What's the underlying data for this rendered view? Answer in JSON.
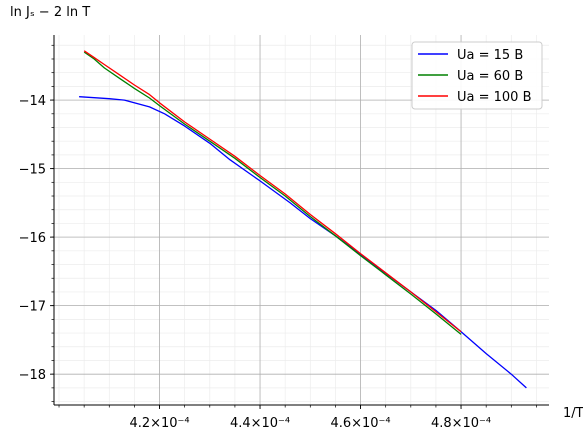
{
  "chart_data": {
    "type": "line",
    "xlabel": "1/T",
    "ylabel": "ln Jₛ − 2 ln T",
    "xlim": [
      0.000399,
      0.0004975
    ],
    "ylim": [
      -18.45,
      -13.05
    ],
    "x_major_ticks": [
      0.00042,
      0.00044,
      0.00046,
      0.00048
    ],
    "x_tick_labels": [
      "4.2×10⁻⁴",
      "4.4×10⁻⁴",
      "4.6×10⁻⁴",
      "4.8×10⁻⁴"
    ],
    "x_minor_step": 5e-06,
    "y_major_ticks": [
      -14,
      -15,
      -16,
      -17,
      -18
    ],
    "y_tick_labels": [
      "−14",
      "−15",
      "−16",
      "−17",
      "−18"
    ],
    "y_minor_step": 0.2,
    "grid": true,
    "legend": "top-right",
    "series": [
      {
        "name": "Ua = 15 B",
        "color": "#0000ff",
        "x": [
          0.000404,
          0.00041,
          0.000413,
          0.000418,
          0.000421,
          0.000425,
          0.00043,
          0.000434,
          0.00044,
          0.000446,
          0.00045,
          0.000455,
          0.00046,
          0.000465,
          0.00047,
          0.000475,
          0.00048,
          0.000485,
          0.00049,
          0.000493
        ],
        "y": [
          -13.95,
          -13.98,
          -14.0,
          -14.1,
          -14.2,
          -14.38,
          -14.63,
          -14.87,
          -15.18,
          -15.5,
          -15.73,
          -15.98,
          -16.25,
          -16.53,
          -16.8,
          -17.07,
          -17.38,
          -17.7,
          -18.0,
          -18.2
        ]
      },
      {
        "name": "Ua = 60 B",
        "color": "#008000",
        "x": [
          0.000405,
          0.000407,
          0.000409,
          0.000412,
          0.000415,
          0.000418,
          0.00042,
          0.000425,
          0.00043,
          0.000435,
          0.00044,
          0.000445,
          0.00045,
          0.000455,
          0.00046,
          0.000465,
          0.00047,
          0.000475,
          0.00048
        ],
        "y": [
          -13.3,
          -13.4,
          -13.53,
          -13.68,
          -13.83,
          -13.97,
          -14.08,
          -14.35,
          -14.6,
          -14.85,
          -15.13,
          -15.4,
          -15.7,
          -15.98,
          -16.27,
          -16.55,
          -16.83,
          -17.12,
          -17.42
        ]
      },
      {
        "name": "Ua = 100 B",
        "color": "#ff0000",
        "x": [
          0.000405,
          0.000407,
          0.000409,
          0.000412,
          0.000415,
          0.000418,
          0.00042,
          0.000425,
          0.00043,
          0.000435,
          0.00044,
          0.000445,
          0.00045,
          0.000455,
          0.00046,
          0.000465,
          0.00047,
          0.000475,
          0.00048
        ],
        "y": [
          -13.28,
          -13.38,
          -13.48,
          -13.63,
          -13.78,
          -13.92,
          -14.04,
          -14.32,
          -14.57,
          -14.82,
          -15.1,
          -15.37,
          -15.67,
          -15.95,
          -16.24,
          -16.52,
          -16.8,
          -17.09,
          -17.38
        ]
      }
    ]
  }
}
